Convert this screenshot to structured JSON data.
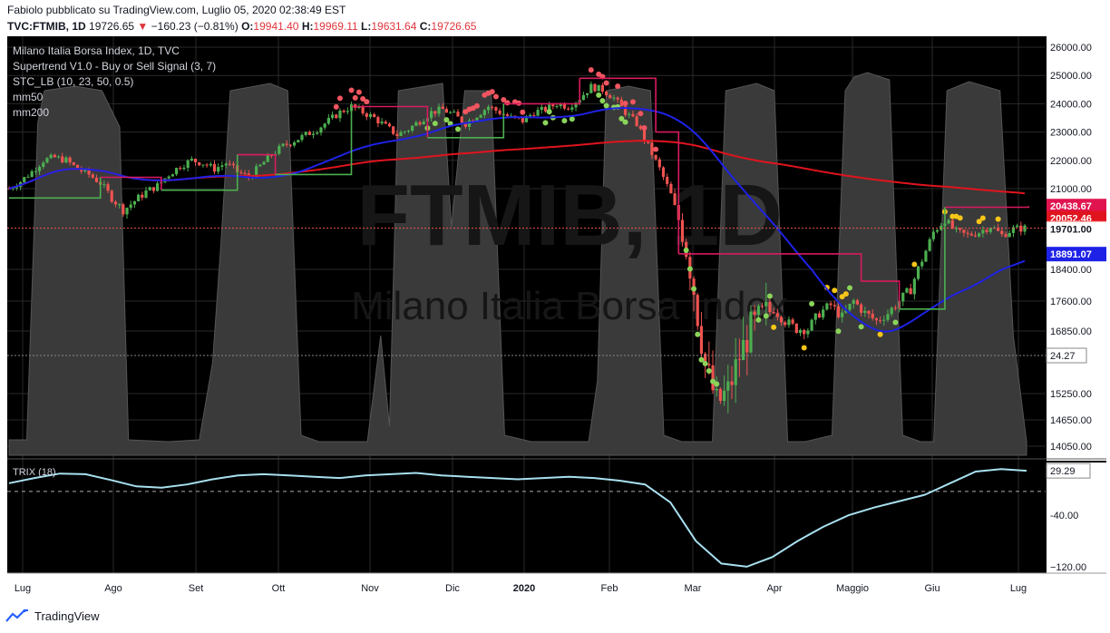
{
  "header": {
    "published_by": "Fabiolo pubblicato su TradingView.com, Luglio 05, 2020 02:38:49 EST",
    "symbol": "TVC:FTMIB, 1D",
    "last": "19726.65",
    "change_arrow": "▼",
    "change": "−160.23 (−0.81%)",
    "o_label": "O:",
    "o_value": "19941.40",
    "h_label": "H:",
    "h_value": "19969.11",
    "l_label": "L:",
    "l_value": "19631.64",
    "c_label": "C:",
    "c_value": "19726.65"
  },
  "legend": [
    "Milano Italia Borsa Index, 1D, TVC",
    "Supertrend V1.0 - Buy or Sell Signal (3, 7)",
    "STC_LB (10, 23, 50, 0.5)",
    "mm50",
    "mm200"
  ],
  "watermark": {
    "big": "FTMIB, 1D",
    "small": "Milano Italia Borsa Index"
  },
  "indicator_label": "TRIX (18)",
  "brand": "TradingView",
  "colors": {
    "background": "#000000",
    "grid": "#2a2a2a",
    "up": "#4caf50",
    "down": "#ef5350",
    "mm50": "#1e22e6",
    "mm200": "#e0141e",
    "supertrend_down": "#d81b60",
    "supertrend_up": "#4caf50",
    "stc": "#3a3a3a",
    "trix": "#a8e0f0",
    "dot_red": "#f05560",
    "dot_green": "#8bd45a",
    "dot_yellow": "#f5c518"
  },
  "chart_data": [
    {
      "type": "candlestick",
      "title": "Milano Italia Borsa Index, 1D, TVC",
      "x_ticks": [
        "Lug",
        "Ago",
        "Set",
        "Ott",
        "Nov",
        "Dic",
        "2020",
        "Feb",
        "Mar",
        "Apr",
        "Maggio",
        "Giu",
        "Lug"
      ],
      "y_ticks": [
        26000,
        25000,
        24000,
        23000,
        22000,
        21000,
        18400,
        17600,
        16850,
        15250,
        14650,
        14050
      ],
      "y_tick_labels": [
        "26000.00",
        "25000.00",
        "24000.00",
        "23000.00",
        "22000.00",
        "21000.00",
        "18400.00",
        "17600.00",
        "16850.00",
        "15250.00",
        "14650.00",
        "14050.00"
      ],
      "ylim": [
        13800,
        26300
      ],
      "price_tags": [
        {
          "label": "20438.67",
          "value": 20438.67,
          "color": "#e0144f"
        },
        {
          "label": "20052.46",
          "value": 20052.46,
          "color": "#e0141e"
        },
        {
          "label": "19726.65",
          "value": 19726.65,
          "color": "#ef5350"
        },
        {
          "label": "19701.00",
          "value": 19701.0,
          "color": "#ffffff"
        },
        {
          "label": "18891.07",
          "value": 18891.07,
          "color": "#1e22e6"
        }
      ],
      "stc_value_tag": "24.27",
      "close_series": [
        [
          0,
          21000
        ],
        [
          3,
          21250
        ],
        [
          6,
          21600
        ],
        [
          9,
          22000
        ],
        [
          12,
          22100
        ],
        [
          15,
          22000
        ],
        [
          18,
          21700
        ],
        [
          21,
          21500
        ],
        [
          24,
          21200
        ],
        [
          27,
          20700
        ],
        [
          30,
          20300
        ],
        [
          33,
          20600
        ],
        [
          36,
          20900
        ],
        [
          39,
          21100
        ],
        [
          42,
          21500
        ],
        [
          45,
          21800
        ],
        [
          48,
          22000
        ],
        [
          51,
          21900
        ],
        [
          54,
          21700
        ],
        [
          57,
          21900
        ],
        [
          60,
          21600
        ],
        [
          63,
          21400
        ],
        [
          66,
          21800
        ],
        [
          69,
          22200
        ],
        [
          72,
          22500
        ],
        [
          75,
          22700
        ],
        [
          78,
          22900
        ],
        [
          81,
          23100
        ],
        [
          84,
          23400
        ],
        [
          87,
          23700
        ],
        [
          90,
          23900
        ],
        [
          93,
          23700
        ],
        [
          96,
          23500
        ],
        [
          99,
          23200
        ],
        [
          102,
          22900
        ],
        [
          105,
          23100
        ],
        [
          108,
          23400
        ],
        [
          111,
          23700
        ],
        [
          114,
          23800
        ],
        [
          117,
          23600
        ],
        [
          120,
          23300
        ],
        [
          123,
          23600
        ],
        [
          126,
          23900
        ],
        [
          129,
          23700
        ],
        [
          132,
          23500
        ],
        [
          135,
          23400
        ],
        [
          138,
          23700
        ],
        [
          141,
          23800
        ],
        [
          144,
          24000
        ],
        [
          147,
          23900
        ],
        [
          150,
          24200
        ],
        [
          153,
          24600
        ],
        [
          156,
          24500
        ],
        [
          159,
          24200
        ],
        [
          162,
          23700
        ],
        [
          165,
          23300
        ],
        [
          168,
          22500
        ],
        [
          171,
          21700
        ],
        [
          174,
          20800
        ],
        [
          177,
          19600
        ],
        [
          180,
          17900
        ],
        [
          183,
          16000
        ],
        [
          186,
          15000
        ],
        [
          189,
          15300
        ],
        [
          192,
          16200
        ],
        [
          195,
          16900
        ],
        [
          198,
          17200
        ],
        [
          201,
          17400
        ],
        [
          204,
          17100
        ],
        [
          207,
          16900
        ],
        [
          210,
          16900
        ],
        [
          213,
          17300
        ],
        [
          216,
          17500
        ],
        [
          219,
          17200
        ],
        [
          222,
          17600
        ],
        [
          225,
          17300
        ],
        [
          228,
          17100
        ],
        [
          231,
          17300
        ],
        [
          234,
          17600
        ],
        [
          237,
          17900
        ],
        [
          240,
          18700
        ],
        [
          243,
          19600
        ],
        [
          246,
          20000
        ],
        [
          249,
          19600
        ],
        [
          252,
          19500
        ],
        [
          255,
          19600
        ],
        [
          258,
          19800
        ],
        [
          261,
          19500
        ],
        [
          264,
          19700
        ],
        [
          267,
          19727
        ]
      ]
    },
    {
      "type": "line",
      "title": "TRIX (18)",
      "y_ticks": [
        -40,
        -120
      ],
      "y_tick_labels": [
        "-40.00",
        "−120.00"
      ],
      "last_label": "29.29",
      "last_value": 29.29,
      "ylim": [
        -130,
        45
      ],
      "values": [
        10,
        18,
        25,
        24,
        15,
        5,
        3,
        8,
        16,
        22,
        24,
        22,
        20,
        18,
        22,
        24,
        26,
        22,
        20,
        18,
        16,
        18,
        20,
        18,
        14,
        8,
        -20,
        -80,
        -115,
        -120,
        -105,
        -80,
        -58,
        -40,
        -28,
        -18,
        -8,
        10,
        28,
        32,
        29.29
      ]
    }
  ]
}
